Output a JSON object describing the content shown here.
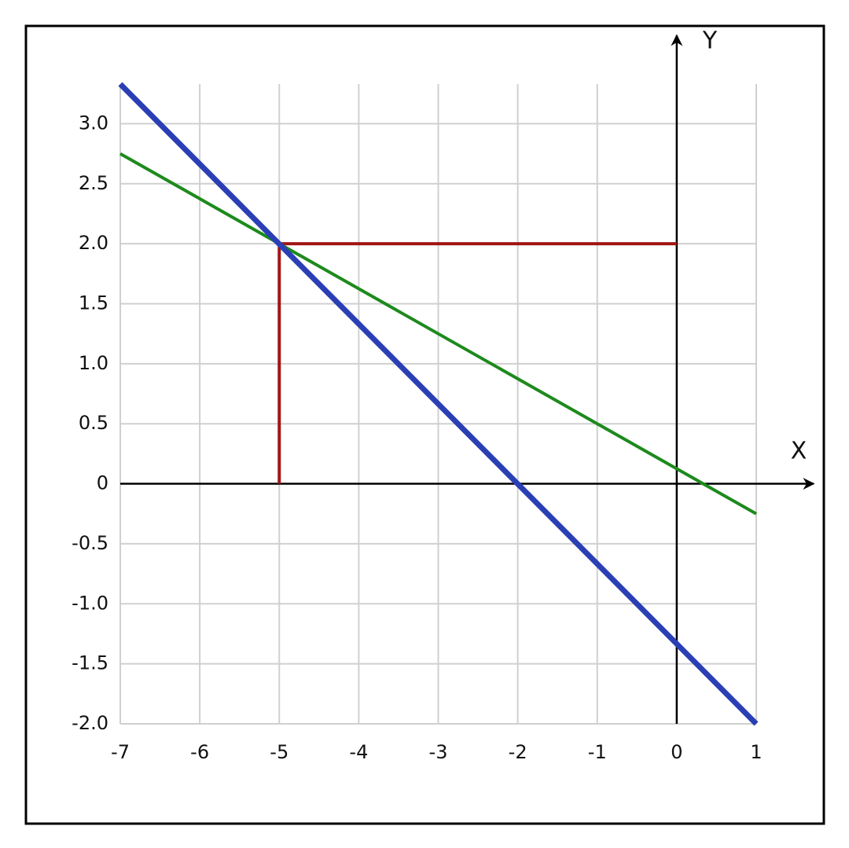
{
  "chart_data": {
    "type": "line",
    "x_label": "X",
    "y_label": "Y",
    "xlim": [
      -7,
      1
    ],
    "ylim": [
      -2,
      3.33
    ],
    "xticks": [
      -7,
      -6,
      -5,
      -4,
      -3,
      -2,
      -1,
      0,
      1
    ],
    "yticks": [
      {
        "value": -2,
        "label": "-2.0"
      },
      -1.5,
      {
        "value": -1,
        "label": "-1.0"
      },
      -0.5,
      0,
      0.5,
      {
        "value": 1,
        "label": "1.0"
      },
      1.5,
      {
        "value": 2,
        "label": "2.0"
      },
      2.5,
      {
        "value": 3,
        "label": "3.0"
      }
    ],
    "grid": true,
    "series": [
      {
        "color": "#2b3fb5",
        "x": [
          -7,
          1
        ],
        "values": [
          3.33,
          -2
        ]
      },
      {
        "color": "#1d8a1d",
        "x": [
          -7,
          1
        ],
        "values": [
          2.75,
          -0.25
        ]
      },
      {
        "color": "#a01616",
        "x": [
          -5,
          -5,
          0
        ],
        "values": [
          0,
          2,
          2
        ]
      }
    ]
  }
}
